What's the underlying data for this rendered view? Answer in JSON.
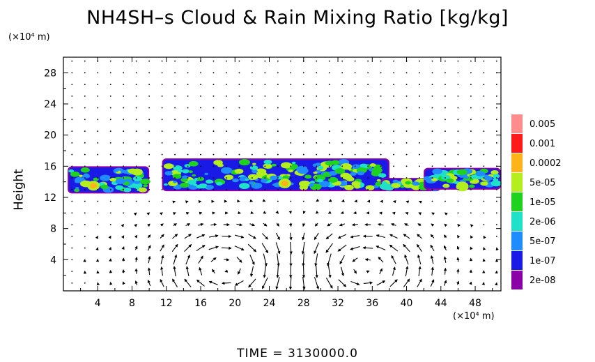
{
  "chart_data": {
    "type": "heatmap",
    "title": "NH4SH–s Cloud & Rain Mixing Ratio [kg/kg]",
    "ylabel": "Height",
    "xunit": "(×10⁴ m)",
    "yunit": "(×10⁴ m)",
    "xlim": [
      0,
      51
    ],
    "ylim": [
      0,
      30
    ],
    "xticks": [
      4,
      8,
      12,
      16,
      20,
      24,
      28,
      32,
      36,
      40,
      44,
      48
    ],
    "yticks": [
      4,
      8,
      12,
      16,
      20,
      24,
      28
    ],
    "legend": {
      "position": "right",
      "levels": [
        {
          "label": "2e-08",
          "color": "#8c00a8"
        },
        {
          "label": "1e-07",
          "color": "#1a1ae6"
        },
        {
          "label": "5e-07",
          "color": "#1f8cff"
        },
        {
          "label": "2e-06",
          "color": "#1fe0c8"
        },
        {
          "label": "1e-05",
          "color": "#1fd21f"
        },
        {
          "label": "5e-05",
          "color": "#b4ee1e"
        },
        {
          "label": "0.0002",
          "color": "#ffb31a"
        },
        {
          "label": "0.001",
          "color": "#ff1a1a"
        },
        {
          "label": "0.005",
          "color": "#ff8c8c"
        }
      ]
    },
    "cloud_layer": {
      "segments": [
        {
          "x": [
            0.5,
            10
          ],
          "y": [
            12.5,
            16.0
          ],
          "peak": {
            "x": 3.5,
            "y": 13.5,
            "value": "0.0002"
          }
        },
        {
          "x": [
            11.5,
            38
          ],
          "y": [
            12.8,
            17.0
          ],
          "peak": {
            "x": 25.8,
            "y": 13.8,
            "value": "0.0002"
          }
        },
        {
          "x": [
            37,
            44
          ],
          "y": [
            12.8,
            14.5
          ]
        },
        {
          "x": [
            42,
            51
          ],
          "y": [
            13.0,
            15.8
          ],
          "peak": {
            "x": 46.5,
            "y": 13.4,
            "value": "5e-05"
          }
        }
      ]
    },
    "circulation_cells": [
      {
        "center_x": 19,
        "center_y": 3,
        "rotation": "clockwise"
      },
      {
        "center_x": 35,
        "center_y": 3,
        "rotation": "counterclockwise"
      }
    ],
    "time_label": "TIME  =  3130000.0"
  }
}
